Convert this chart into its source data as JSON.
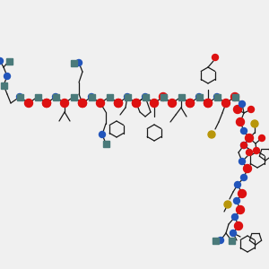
{
  "bg": "#f0f0f0",
  "bond_color": "#1a1a1a",
  "lw": 0.9,
  "blue": "#2255bb",
  "red": "#dd1111",
  "teal": "#4a7a7a",
  "yellow": "#b8960a",
  "atom_r": 3.5
}
